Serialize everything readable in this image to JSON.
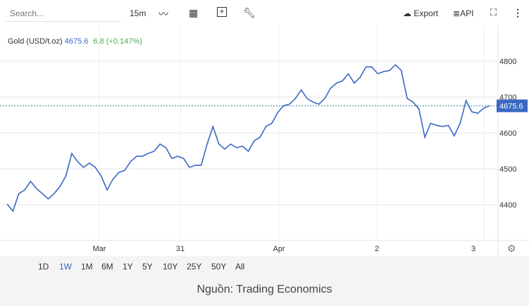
{
  "toolbar": {
    "search_placeholder": "Search...",
    "interval": "15m",
    "export": "Export",
    "api": "API"
  },
  "legend": {
    "name": "Gold (USD/t.oz)",
    "price": "4675.6",
    "change": "6.8 (+0.147%)"
  },
  "colors": {
    "line": "#3a68c4",
    "change": "#4caf50",
    "grid": "#e6e6e6"
  },
  "ranges": [
    "1D",
    "1W",
    "1M",
    "6M",
    "1Y",
    "5Y",
    "10Y",
    "25Y",
    "50Y",
    "All"
  ],
  "active_range": "1W",
  "footer": "Nguồn: Trading Economics",
  "chart_data": {
    "type": "line",
    "title": "",
    "y_ticks": [
      "4400",
      "4500",
      "4600",
      "4700",
      "4800"
    ],
    "ylim": [
      4340,
      4890
    ],
    "x_ticks": [
      "Mar",
      "31",
      "Apr",
      "2",
      "3"
    ],
    "last_value": 4675.6,
    "last_label": "4675.6",
    "grid": true,
    "values": [
      4402,
      4382,
      4431,
      4441,
      4465,
      4445,
      4431,
      4416,
      4431,
      4451,
      4480,
      4543,
      4520,
      4504,
      4516,
      4504,
      4480,
      4441,
      4471,
      4490,
      4496,
      4520,
      4535,
      4535,
      4543,
      4549,
      4569,
      4559,
      4529,
      4535,
      4529,
      4504,
      4510,
      4510,
      4569,
      4618,
      4569,
      4555,
      4569,
      4559,
      4563,
      4549,
      4578,
      4588,
      4618,
      4627,
      4657,
      4676,
      4680,
      4696,
      4720,
      4696,
      4686,
      4680,
      4696,
      4725,
      4739,
      4745,
      4765,
      4739,
      4755,
      4784,
      4784,
      4765,
      4771,
      4774,
      4790,
      4774,
      4696,
      4686,
      4667,
      4588,
      4627,
      4621,
      4618,
      4621,
      4592,
      4627,
      4690,
      4659,
      4655,
      4669,
      4675.6
    ]
  }
}
